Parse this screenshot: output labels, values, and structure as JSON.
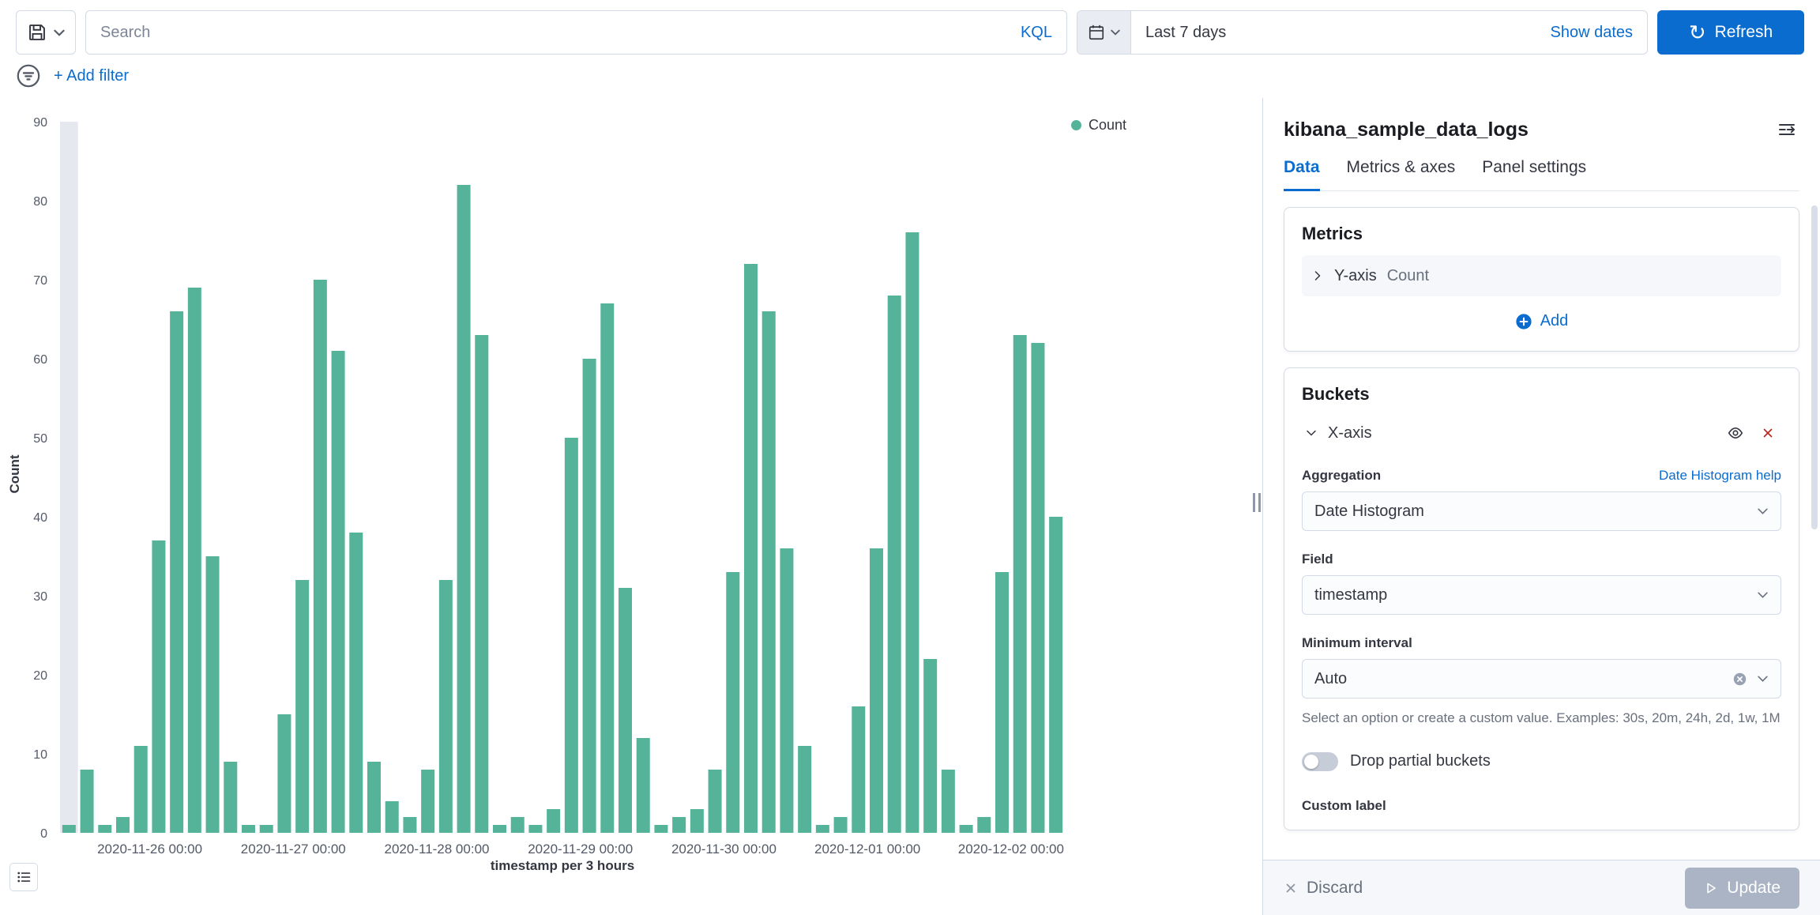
{
  "topbar": {
    "search_placeholder": "Search",
    "kql_label": "KQL",
    "time_range": "Last 7 days",
    "show_dates_label": "Show dates",
    "refresh_label": "Refresh",
    "add_filter_label": "+ Add filter"
  },
  "panel": {
    "title": "kibana_sample_data_logs",
    "tabs": [
      {
        "label": "Data",
        "active": true
      },
      {
        "label": "Metrics & axes",
        "active": false
      },
      {
        "label": "Panel settings",
        "active": false
      }
    ],
    "metrics": {
      "heading": "Metrics",
      "row_label": "Y-axis",
      "row_value": "Count",
      "add_label": "Add"
    },
    "buckets": {
      "heading": "Buckets",
      "row_label": "X-axis",
      "aggregation_label": "Aggregation",
      "help_link": "Date Histogram help",
      "aggregation_value": "Date Histogram",
      "field_label": "Field",
      "field_value": "timestamp",
      "interval_label": "Minimum interval",
      "interval_value": "Auto",
      "interval_help": "Select an option or create a custom value. Examples: 30s, 20m, 24h, 2d, 1w, 1M",
      "toggle_label": "Drop partial buckets",
      "toggle_state": "off",
      "clipped_label": "Custom label"
    },
    "footer": {
      "discard_label": "Discard",
      "update_label": "Update"
    }
  },
  "chart_data": {
    "type": "bar",
    "series_name": "Count",
    "xlabel": "timestamp per 3 hours",
    "ylabel": "Count",
    "ylim": [
      0,
      90
    ],
    "y_ticks": [
      0,
      10,
      20,
      30,
      40,
      50,
      60,
      70,
      80,
      90
    ],
    "x_tick_labels": [
      "2020-11-26 00:00",
      "2020-11-27 00:00",
      "2020-11-28 00:00",
      "2020-11-29 00:00",
      "2020-11-30 00:00",
      "2020-12-01 00:00",
      "2020-12-02 00:00"
    ],
    "x_tick_bar_indices": [
      5,
      13,
      21,
      29,
      37,
      45,
      53
    ],
    "bucket_interval": "3h",
    "bar_color": "#54b399",
    "partial_bucket_band_index": 0,
    "values": [
      1,
      8,
      1,
      2,
      11,
      37,
      66,
      69,
      35,
      9,
      1,
      1,
      15,
      32,
      70,
      61,
      38,
      9,
      4,
      2,
      8,
      32,
      82,
      63,
      1,
      2,
      1,
      3,
      50,
      60,
      67,
      31,
      12,
      1,
      2,
      3,
      8,
      33,
      72,
      66,
      36,
      11,
      1,
      2,
      16,
      36,
      68,
      76,
      22,
      8,
      1,
      2,
      33,
      63,
      62,
      40
    ],
    "legend_position": "right-top",
    "grid": false
  },
  "colors": {
    "accent_blue": "#0a6ccf",
    "bar_teal": "#54b399",
    "danger_red": "#bd271e",
    "text_dark": "#343741",
    "text_subdued": "#69707d",
    "border": "#d3dae6",
    "disabled_button_bg": "#abb4c4",
    "control_segment_bg": "#e9edf3",
    "row_highlight_bg": "#f5f7fa"
  }
}
